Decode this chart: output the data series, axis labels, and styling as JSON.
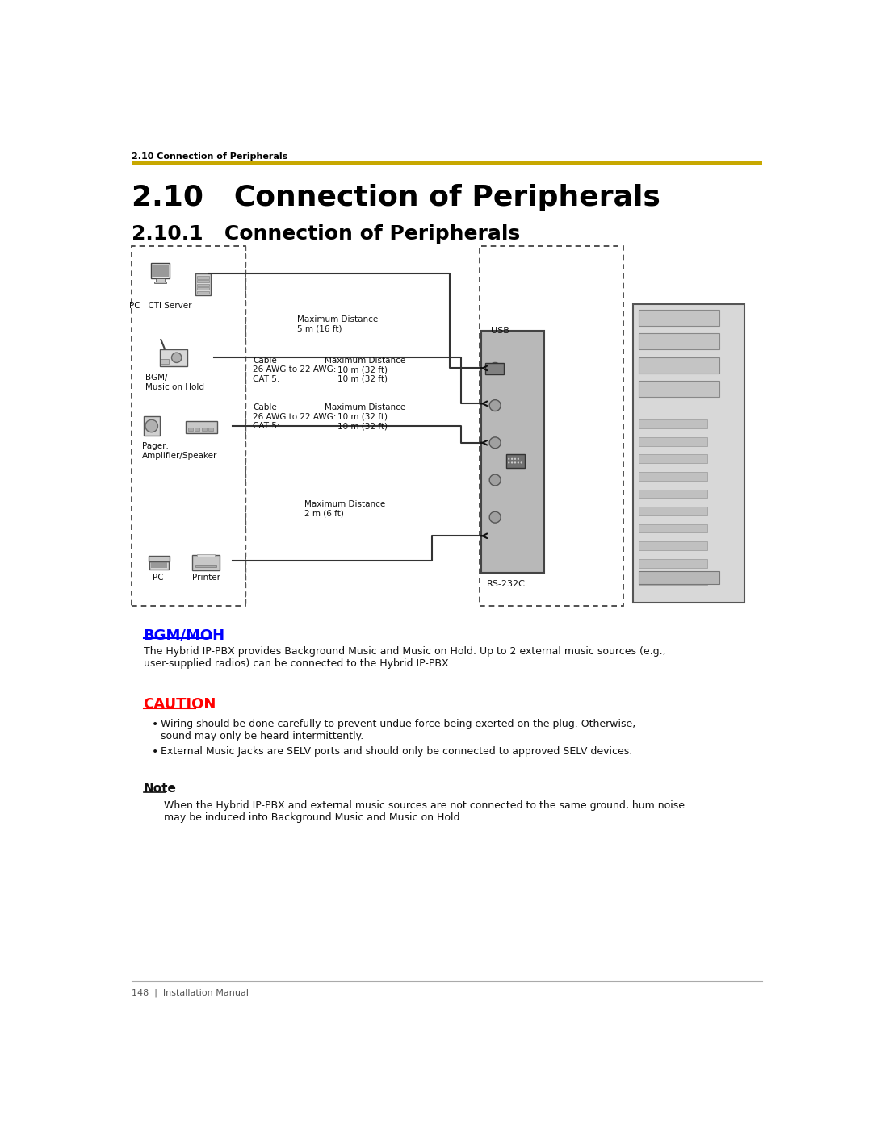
{
  "page_bg": "#ffffff",
  "header_text": "2.10 Connection of Peripherals",
  "header_color": "#000000",
  "header_fontsize": 8,
  "gold_line_color": "#C8A800",
  "title_text": "2.10   Connection of Peripherals",
  "title_fontsize": 26,
  "subtitle_text": "2.10.1   Connection of Peripherals",
  "subtitle_fontsize": 18,
  "bgm_moh_label": "BGM/MOH",
  "bgm_moh_color": "#0000FF",
  "bgm_moh_fontsize": 13,
  "bgm_paragraph": "The Hybrid IP-PBX provides Background Music and Music on Hold. Up to 2 external music sources (e.g.,\nuser-supplied radios) can be connected to the Hybrid IP-PBX.",
  "caution_label": "CAUTION",
  "caution_color": "#FF0000",
  "caution_fontsize": 13,
  "bullet1_line1": "Wiring should be done carefully to prevent undue force being exerted on the plug. Otherwise,",
  "bullet1_line2": "sound may only be heard intermittently.",
  "bullet2": "External Music Jacks are SELV ports and should only be connected to approved SELV devices.",
  "note_label": "Note",
  "note_fontsize": 11,
  "note_text_line1": "When the Hybrid IP-PBX and external music sources are not connected to the same ground, hum noise",
  "note_text_line2": "may be induced into Background Music and Music on Hold.",
  "footer_text": "148  |  Installation Manual",
  "footer_fontsize": 8,
  "diagram_label_pc_cti": "PC   CTI Server",
  "diagram_label_bgm": "BGM/\nMusic on Hold",
  "diagram_label_pager": "Pager:\nAmplifier/Speaker",
  "diagram_label_usb": "USB",
  "diagram_label_rs232c": "RS-232C",
  "diagram_max_dist_top_1": "Maximum Distance",
  "diagram_max_dist_top_2": "5 m (16 ft)",
  "diagram_max_dist_bot_1": "Maximum Distance",
  "diagram_max_dist_bot_2": "2 m (6 ft)"
}
